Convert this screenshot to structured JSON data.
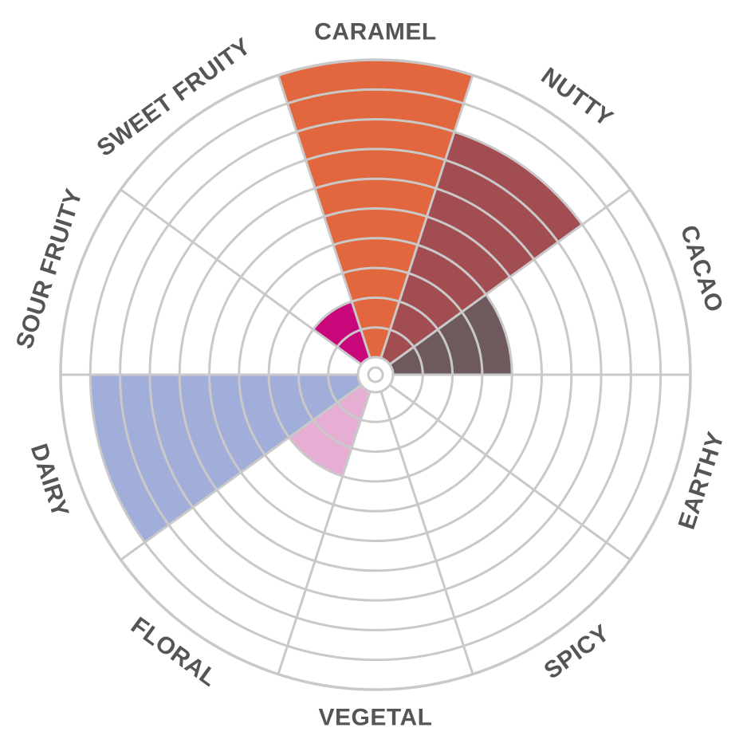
{
  "chart_data": {
    "type": "polar-area",
    "title": "",
    "radial_max": 10,
    "rings": 10,
    "grid": true,
    "grid_color": "#c9c9c9",
    "categories": [
      {
        "label": "CARAMEL",
        "value": 10,
        "color": "#e2673f"
      },
      {
        "label": "NUTTY",
        "value": 8,
        "color": "#a24d52"
      },
      {
        "label": "CACAO",
        "value": 4,
        "color": "#6e5a5d"
      },
      {
        "label": "EARTHY",
        "value": 0,
        "color": "#9c8b6b"
      },
      {
        "label": "SPICY",
        "value": 0,
        "color": "#c86a3a"
      },
      {
        "label": "VEGETAL",
        "value": 0,
        "color": "#7a9a5a"
      },
      {
        "label": "FLORAL",
        "value": 3,
        "color": "#e5aed2"
      },
      {
        "label": "DAIRY",
        "value": 9,
        "color": "#a1aed9"
      },
      {
        "label": "SOUR FRUITY",
        "value": 0,
        "color": "#d9c24a"
      },
      {
        "label": "SWEET FRUITY",
        "value": 2,
        "color": "#c8087a"
      }
    ]
  }
}
